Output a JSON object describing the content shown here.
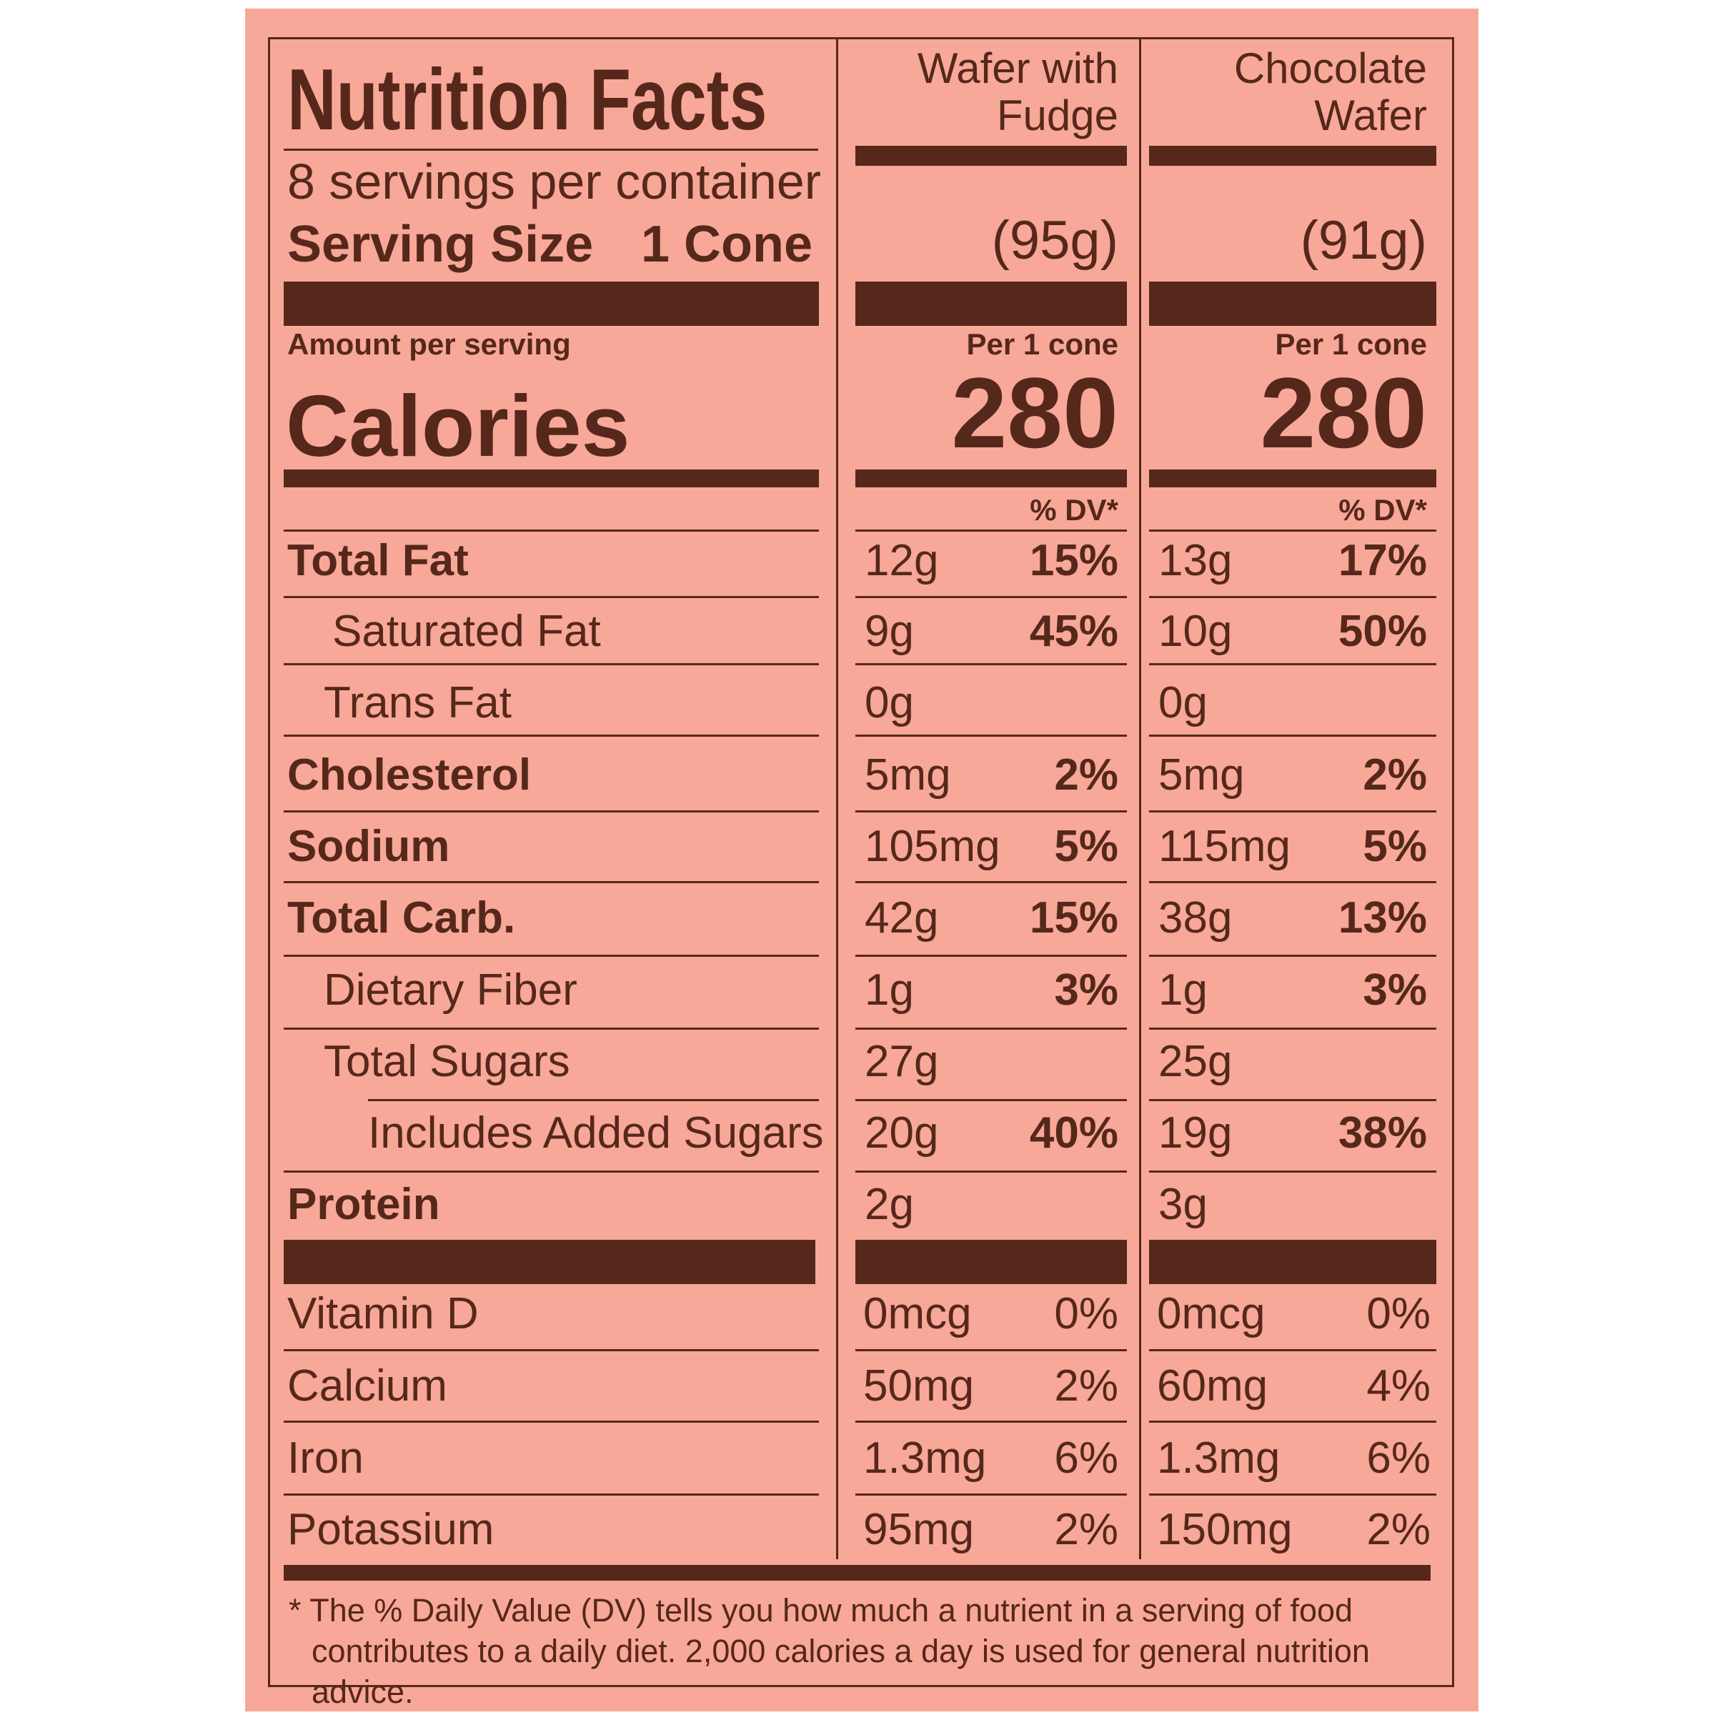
{
  "label": {
    "title": "Nutrition Facts",
    "servings": "8 servings per container",
    "serving_size_label": "Serving Size",
    "serving_size_value": "1 Cone",
    "amount_per_serving": "Amount per serving",
    "calories_label": "Calories",
    "columns": [
      {
        "name_line1": "Wafer with",
        "name_line2": "Fudge",
        "weight": "(95g)",
        "per": "Per 1 cone",
        "calories": "280",
        "dv_header": "% DV*"
      },
      {
        "name_line1": "Chocolate",
        "name_line2": "Wafer",
        "weight": "(91g)",
        "per": "Per 1 cone",
        "calories": "280",
        "dv_header": "% DV*"
      }
    ],
    "rows": [
      {
        "name": "Total Fat",
        "c1_amt": "12g",
        "c1_dv": "15%",
        "c2_amt": "13g",
        "c2_dv": "17%"
      },
      {
        "name": "Saturated Fat",
        "c1_amt": "9g",
        "c1_dv": "45%",
        "c2_amt": "10g",
        "c2_dv": "50%"
      },
      {
        "name": "Trans Fat",
        "c1_amt": "0g",
        "c1_dv": "",
        "c2_amt": "0g",
        "c2_dv": ""
      },
      {
        "name": "Cholesterol",
        "c1_amt": "5mg",
        "c1_dv": "2%",
        "c2_amt": "5mg",
        "c2_dv": "2%"
      },
      {
        "name": "Sodium",
        "c1_amt": "105mg",
        "c1_dv": "5%",
        "c2_amt": "115mg",
        "c2_dv": "5%"
      },
      {
        "name": "Total Carb.",
        "c1_amt": "42g",
        "c1_dv": "15%",
        "c2_amt": "38g",
        "c2_dv": "13%"
      },
      {
        "name": "Dietary Fiber",
        "c1_amt": "1g",
        "c1_dv": "3%",
        "c2_amt": "1g",
        "c2_dv": "3%"
      },
      {
        "name": "Total Sugars",
        "c1_amt": "27g",
        "c1_dv": "",
        "c2_amt": "25g",
        "c2_dv": ""
      },
      {
        "name": "Includes Added Sugars",
        "c1_amt": "20g",
        "c1_dv": "40%",
        "c2_amt": "19g",
        "c2_dv": "38%"
      },
      {
        "name": "Protein",
        "c1_amt": "2g",
        "c1_dv": "",
        "c2_amt": "3g",
        "c2_dv": ""
      }
    ],
    "vitamins": [
      {
        "name": "Vitamin D",
        "c1_amt": "0mcg",
        "c1_dv": "0%",
        "c2_amt": "0mcg",
        "c2_dv": "0%"
      },
      {
        "name": "Calcium",
        "c1_amt": "50mg",
        "c1_dv": "2%",
        "c2_amt": "60mg",
        "c2_dv": "4%"
      },
      {
        "name": "Iron",
        "c1_amt": "1.3mg",
        "c1_dv": "6%",
        "c2_amt": "1.3mg",
        "c2_dv": "6%"
      },
      {
        "name": "Potassium",
        "c1_amt": "95mg",
        "c1_dv": "2%",
        "c2_amt": "150mg",
        "c2_dv": "2%"
      }
    ],
    "footnote": "* The % Daily Value (DV) tells you how much a nutrient in a serving of food contributes to a daily diet. 2,000 calories a day is used for general nutrition advice."
  },
  "colors": {
    "background": "#f8a898",
    "ink": "#55281b"
  }
}
